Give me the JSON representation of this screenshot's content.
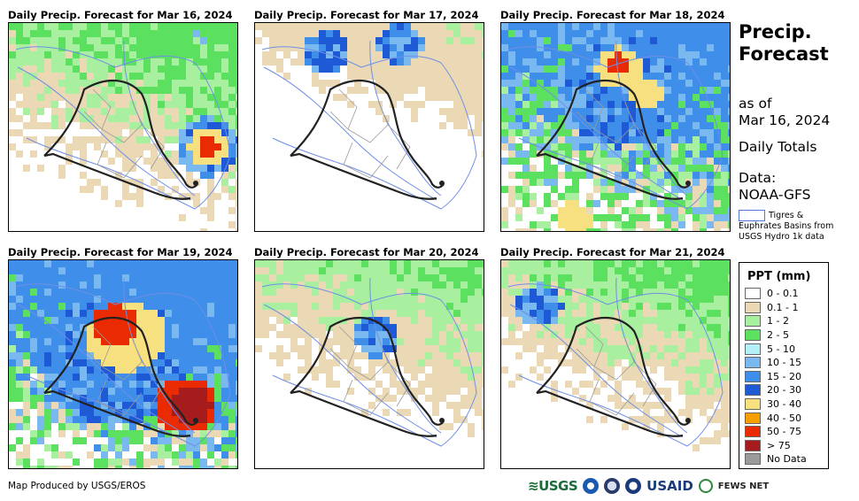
{
  "panels": [
    {
      "title": "Daily Precip. Forecast for Mar 16, 2024",
      "intensity": 0.6,
      "hotspots": [
        [
          "r",
          0.86,
          0.58,
          0.05
        ],
        [
          "y",
          0.86,
          0.58,
          0.09
        ],
        [
          "b",
          0.86,
          0.58,
          0.14
        ]
      ]
    },
    {
      "title": "Daily Precip. Forecast for Mar 17, 2024",
      "intensity": 0.35,
      "hotspots": [
        [
          "b",
          0.3,
          0.12,
          0.1
        ],
        [
          "b",
          0.62,
          0.08,
          0.1
        ]
      ]
    },
    {
      "title": "Daily Precip. Forecast for Mar 18, 2024",
      "intensity": 1.1,
      "hotspots": [
        [
          "r",
          0.5,
          0.18,
          0.05
        ],
        [
          "y",
          0.5,
          0.2,
          0.1
        ],
        [
          "y",
          0.62,
          0.32,
          0.07
        ],
        [
          "y",
          0.3,
          0.92,
          0.08
        ],
        [
          "b",
          0.5,
          0.3,
          0.28
        ]
      ]
    },
    {
      "title": "Daily Precip. Forecast for Mar 19, 2024",
      "intensity": 1.25,
      "hotspots": [
        [
          "m",
          0.78,
          0.68,
          0.09
        ],
        [
          "r",
          0.76,
          0.68,
          0.13
        ],
        [
          "r",
          0.45,
          0.3,
          0.1
        ],
        [
          "y",
          0.5,
          0.35,
          0.17
        ],
        [
          "b",
          0.45,
          0.45,
          0.32
        ]
      ]
    },
    {
      "title": "Daily Precip. Forecast for Mar 20, 2024",
      "intensity": 0.5,
      "hotspots": [
        [
          "b",
          0.52,
          0.35,
          0.1
        ]
      ]
    },
    {
      "title": "Daily Precip. Forecast for Mar 21, 2024",
      "intensity": 0.55,
      "hotspots": [
        [
          "b",
          0.15,
          0.2,
          0.1
        ]
      ]
    }
  ],
  "sidebar": {
    "title_line1": "Precip.",
    "title_line2": "Forecast",
    "as_of_label": "as of",
    "as_of_date": "Mar 16, 2024",
    "totals": "Daily Totals",
    "data_label": "Data:",
    "data_source": "NOAA-GFS",
    "basin_note_a": "Tigres &",
    "basin_note_b": "Euphrates Basins from USGS Hydro 1k data"
  },
  "legend": {
    "title": "PPT (mm)",
    "items": [
      {
        "label": "0 - 0.1",
        "color": "#ffffff"
      },
      {
        "label": "0.1 - 1",
        "color": "#ead9b4"
      },
      {
        "label": "1 - 2",
        "color": "#a8f0a0"
      },
      {
        "label": "2 - 5",
        "color": "#5ce060"
      },
      {
        "label": "5 - 10",
        "color": "#b4f0f8"
      },
      {
        "label": "10 - 15",
        "color": "#7ab8f0"
      },
      {
        "label": "15 - 20",
        "color": "#3f8eea"
      },
      {
        "label": "20 - 30",
        "color": "#1e5ad6"
      },
      {
        "label": "30 - 40",
        "color": "#f6e080"
      },
      {
        "label": "40 - 50",
        "color": "#f6a000"
      },
      {
        "label": "50 - 75",
        "color": "#ea2a00"
      },
      {
        "label": "> 75",
        "color": "#a61c1c"
      },
      {
        "label": "No Data",
        "color": "#9a9a9a"
      }
    ]
  },
  "footer": {
    "credit": "Map Produced by USGS/EROS",
    "logo_usgs": "≋USGS",
    "logo_usaid": "USAID",
    "logo_fews": "FEWS NET"
  }
}
